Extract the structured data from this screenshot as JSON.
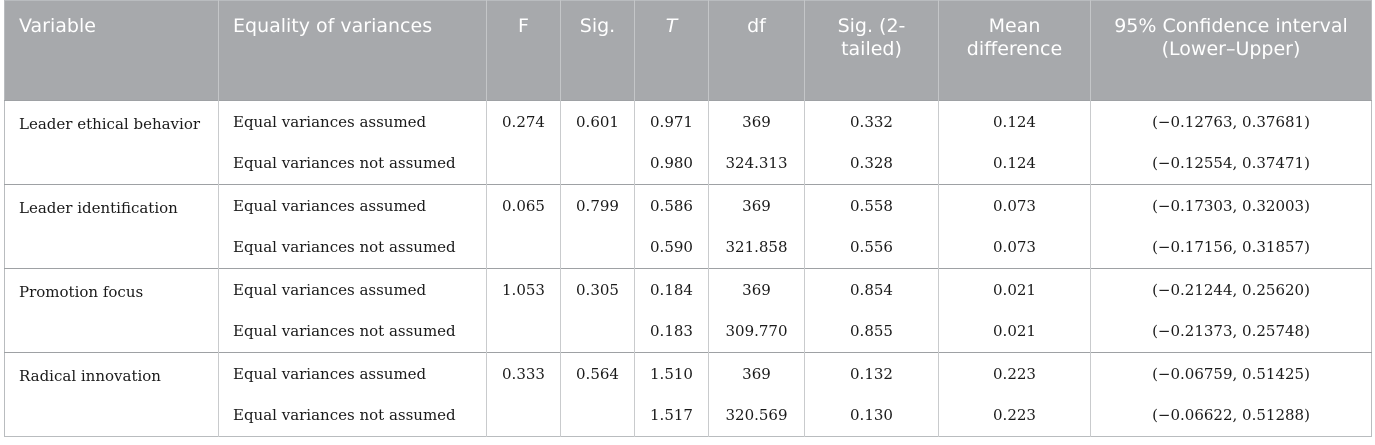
{
  "table": {
    "headers": [
      "Variable",
      "Equality of variances",
      "F",
      "Sig.",
      "T",
      "df",
      "Sig. (2-tailed)",
      "Mean difference",
      "95% Confidence interval (Lower–Upper)"
    ],
    "groups": [
      {
        "variable": "Leader ethical behavior",
        "rows": [
          {
            "equality": "Equal variances assumed",
            "f": "0.274",
            "sig": "0.601",
            "t": "0.971",
            "df": "369",
            "sig2": "0.332",
            "mean_diff": "0.124",
            "ci": "(−0.12763, 0.37681)"
          },
          {
            "equality": "Equal variances not assumed",
            "f": "",
            "sig": "",
            "t": "0.980",
            "df": "324.313",
            "sig2": "0.328",
            "mean_diff": "0.124",
            "ci": "(−0.12554, 0.37471)"
          }
        ]
      },
      {
        "variable": "Leader identification",
        "rows": [
          {
            "equality": "Equal variances assumed",
            "f": "0.065",
            "sig": "0.799",
            "t": "0.586",
            "df": "369",
            "sig2": "0.558",
            "mean_diff": "0.073",
            "ci": "(−0.17303, 0.32003)"
          },
          {
            "equality": "Equal variances not assumed",
            "f": "",
            "sig": "",
            "t": "0.590",
            "df": "321.858",
            "sig2": "0.556",
            "mean_diff": "0.073",
            "ci": "(−0.17156, 0.31857)"
          }
        ]
      },
      {
        "variable": "Promotion focus",
        "rows": [
          {
            "equality": "Equal variances assumed",
            "f": "1.053",
            "sig": "0.305",
            "t": "0.184",
            "df": "369",
            "sig2": "0.854",
            "mean_diff": "0.021",
            "ci": "(−0.21244, 0.25620)"
          },
          {
            "equality": "Equal variances not assumed",
            "f": "",
            "sig": "",
            "t": "0.183",
            "df": "309.770",
            "sig2": "0.855",
            "mean_diff": "0.021",
            "ci": "(−0.21373, 0.25748)"
          }
        ]
      },
      {
        "variable": "Radical innovation",
        "rows": [
          {
            "equality": "Equal variances assumed",
            "f": "0.333",
            "sig": "0.564",
            "t": "1.510",
            "df": "369",
            "sig2": "0.132",
            "mean_diff": "0.223",
            "ci": "(−0.06759, 0.51425)"
          },
          {
            "equality": "Equal variances not assumed",
            "f": "",
            "sig": "",
            "t": "1.517",
            "df": "320.569",
            "sig2": "0.130",
            "mean_diff": "0.223",
            "ci": "(−0.06622, 0.51288)"
          }
        ]
      }
    ]
  }
}
